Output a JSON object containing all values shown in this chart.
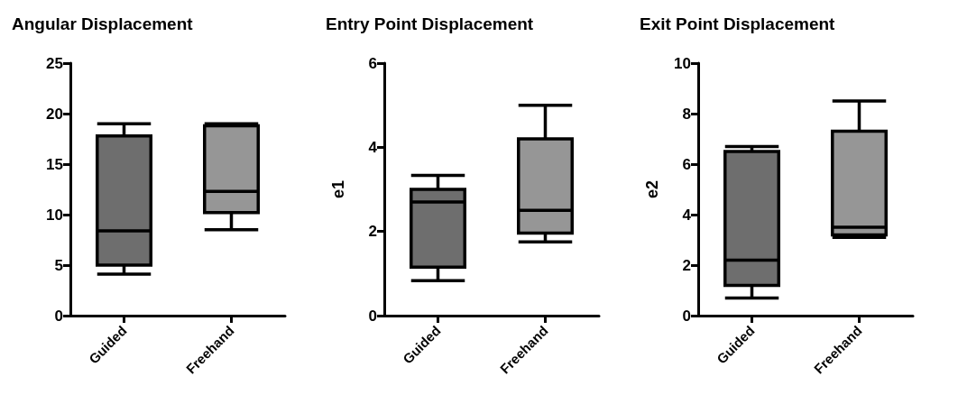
{
  "chart_data": [
    {
      "type": "box",
      "title": "Angular Displacement",
      "categories": [
        "Guided",
        "Freehand"
      ],
      "colors": [
        "#6e6e6e",
        "#969696"
      ],
      "ylim": [
        0,
        25
      ],
      "yticks": [
        0,
        5,
        10,
        15,
        20,
        25
      ],
      "boxes": [
        {
          "low": 4.1,
          "q1": 5,
          "median": 8.4,
          "q3": 17.8,
          "high": 19
        },
        {
          "low": 8.5,
          "q1": 10.2,
          "median": 12.3,
          "q3": 18.8,
          "high": 19
        }
      ]
    },
    {
      "type": "box",
      "title": "Entry Point Displacement",
      "ylabel": "e1",
      "categories": [
        "Guided",
        "Freehand"
      ],
      "colors": [
        "#6e6e6e",
        "#969696"
      ],
      "ylim": [
        0,
        6
      ],
      "yticks": [
        0,
        2,
        4,
        6
      ],
      "boxes": [
        {
          "low": 0.83,
          "q1": 1.15,
          "median": 2.7,
          "q3": 3.0,
          "high": 3.33
        },
        {
          "low": 1.75,
          "q1": 1.96,
          "median": 2.5,
          "q3": 4.2,
          "high": 5.0
        }
      ]
    },
    {
      "type": "box",
      "title": "Exit Point Displacement",
      "ylabel": "e2",
      "categories": [
        "Guided",
        "Freehand"
      ],
      "colors": [
        "#6e6e6e",
        "#969696"
      ],
      "ylim": [
        0,
        10
      ],
      "yticks": [
        0,
        2,
        4,
        6,
        8,
        10
      ],
      "boxes": [
        {
          "low": 0.7,
          "q1": 1.2,
          "median": 2.2,
          "q3": 6.5,
          "high": 6.7
        },
        {
          "low": 3.1,
          "q1": 3.2,
          "median": 3.5,
          "q3": 7.3,
          "high": 8.5
        }
      ]
    }
  ]
}
